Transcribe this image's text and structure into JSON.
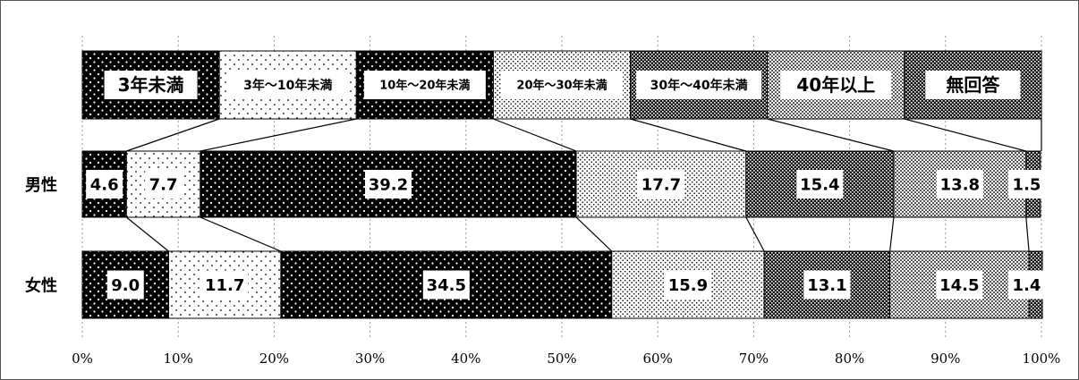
{
  "chart_data": {
    "type": "bar",
    "stacked": true,
    "orientation": "horizontal",
    "percent_stacked": true,
    "categories": [
      "男性",
      "女性"
    ],
    "series": [
      {
        "name": "3年未満",
        "values": [
          4.6,
          9.0
        ],
        "pattern": "dots-black"
      },
      {
        "name": "3年～10年未満",
        "values": [
          7.7,
          11.7
        ],
        "pattern": "dots-white-sparse"
      },
      {
        "name": "10年～20年未満",
        "values": [
          39.2,
          34.5
        ],
        "pattern": "dots-black"
      },
      {
        "name": "20年～30年未満",
        "values": [
          17.7,
          15.9
        ],
        "pattern": "dots-white-dense"
      },
      {
        "name": "30年～40年未満",
        "values": [
          15.4,
          13.1
        ],
        "pattern": "checker-dark"
      },
      {
        "name": "40年以上",
        "values": [
          13.8,
          14.5
        ],
        "pattern": "checker-grey"
      },
      {
        "name": "無回答",
        "values": [
          1.5,
          1.4
        ],
        "pattern": "checker-dark"
      }
    ],
    "value_labels": [
      [
        "4.6",
        "7.7",
        "39.2",
        "17.7",
        "15.4",
        "13.8",
        "1.5"
      ],
      [
        "9.0",
        "11.7",
        "34.5",
        "15.9",
        "13.1",
        "14.5",
        "1.4"
      ]
    ],
    "xlim": [
      0,
      100
    ],
    "x_ticks": [
      "0%",
      "10%",
      "20%",
      "30%",
      "40%",
      "50%",
      "60%",
      "70%",
      "80%",
      "90%",
      "100%"
    ],
    "grid": true,
    "legend_position": "top"
  }
}
